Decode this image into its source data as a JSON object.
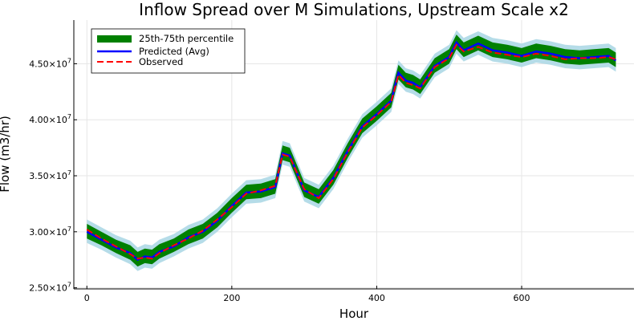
{
  "chart_data": {
    "type": "line",
    "title": "Inflow Spread over M Simulations, Upstream Scale x2",
    "xlabel": "Hour",
    "ylabel": "Flow (m3/hr)",
    "xlim": [
      -18,
      755
    ],
    "ylim": [
      24900000,
      48900000
    ],
    "x_ticks": [
      0,
      200,
      400,
      600
    ],
    "y_ticks": [
      {
        "value": 25000000,
        "mantissa": "2.50",
        "base": "×10",
        "exp": "7"
      },
      {
        "value": 30000000,
        "mantissa": "3.00",
        "base": "×10",
        "exp": "7"
      },
      {
        "value": 35000000,
        "mantissa": "3.50",
        "base": "×10",
        "exp": "7"
      },
      {
        "value": 40000000,
        "mantissa": "4.00",
        "base": "×10",
        "exp": "7"
      },
      {
        "value": 45000000,
        "mantissa": "4.50",
        "base": "×10",
        "exp": "7"
      }
    ],
    "grid": true,
    "legend_position": "top-left",
    "legend": [
      {
        "label": "25th-75th percentile",
        "kind": "band",
        "color": "#008000"
      },
      {
        "label": "Predicted (Avg)",
        "kind": "line",
        "color": "#0000ff"
      },
      {
        "label": "Observed",
        "kind": "dashed",
        "color": "#ff0000"
      }
    ],
    "colors": {
      "band": "#008000",
      "outer_band": "#add8e6",
      "predicted": "#0000ff",
      "observed": "#ff0000"
    },
    "x": [
      0,
      20,
      40,
      60,
      70,
      80,
      90,
      100,
      120,
      140,
      160,
      180,
      200,
      220,
      240,
      260,
      270,
      280,
      300,
      320,
      340,
      360,
      380,
      400,
      420,
      430,
      440,
      450,
      460,
      480,
      500,
      510,
      520,
      540,
      560,
      580,
      600,
      620,
      640,
      660,
      680,
      700,
      720,
      730
    ],
    "series": [
      {
        "name": "Predicted (Avg)",
        "values": [
          30000000,
          29300000,
          28600000,
          28100000,
          27500000,
          27800000,
          27700000,
          28200000,
          28700000,
          29500000,
          30000000,
          31000000,
          32300000,
          33500000,
          33600000,
          34000000,
          37000000,
          36800000,
          33700000,
          33100000,
          34800000,
          37200000,
          39400000,
          40500000,
          41700000,
          44200000,
          43500000,
          43300000,
          42900000,
          44800000,
          45600000,
          46900000,
          46200000,
          46800000,
          46200000,
          46000000,
          45700000,
          46100000,
          45900000,
          45600000,
          45500000,
          45600000,
          45700000,
          45300000
        ]
      },
      {
        "name": "Observed",
        "values": [
          30200000,
          29400000,
          28700000,
          28000000,
          27600000,
          27700000,
          27600000,
          28100000,
          28800000,
          29400000,
          30100000,
          31100000,
          32200000,
          33400000,
          33700000,
          34100000,
          36900000,
          36700000,
          33800000,
          33000000,
          34700000,
          37100000,
          39300000,
          40400000,
          41600000,
          44000000,
          43300000,
          43100000,
          42800000,
          44700000,
          45500000,
          46700000,
          46100000,
          46500000,
          46000000,
          45800000,
          45600000,
          45900000,
          45700000,
          45400000,
          45500000,
          45500000,
          45600000,
          45400000
        ]
      }
    ],
    "band_low": [
      29400000,
      28800000,
      28100000,
      27500000,
      26900000,
      27200000,
      27100000,
      27600000,
      28200000,
      28900000,
      29400000,
      30400000,
      31700000,
      32900000,
      33000000,
      33400000,
      36400000,
      36200000,
      33100000,
      32500000,
      34200000,
      36600000,
      38800000,
      39900000,
      41100000,
      43600000,
      42900000,
      42700000,
      42300000,
      44200000,
      45000000,
      46300000,
      45600000,
      46200000,
      45600000,
      45400000,
      45100000,
      45500000,
      45300000,
      45000000,
      44900000,
      45000000,
      45100000,
      44700000
    ],
    "band_high": [
      30700000,
      30000000,
      29300000,
      28800000,
      28200000,
      28500000,
      28400000,
      28900000,
      29400000,
      30200000,
      30700000,
      31700000,
      33000000,
      34200000,
      34300000,
      34700000,
      37700000,
      37500000,
      34400000,
      33800000,
      35500000,
      37900000,
      40100000,
      41200000,
      42400000,
      44900000,
      44200000,
      44000000,
      43600000,
      45500000,
      46300000,
      47600000,
      46900000,
      47500000,
      46900000,
      46700000,
      46400000,
      46800000,
      46600000,
      46300000,
      46200000,
      46300000,
      46400000,
      46000000
    ],
    "outer_low": [
      29000000,
      28400000,
      27700000,
      27100000,
      26500000,
      26800000,
      26700000,
      27200000,
      27800000,
      28500000,
      29000000,
      30000000,
      31300000,
      32500000,
      32600000,
      33000000,
      36000000,
      35800000,
      32700000,
      32100000,
      33800000,
      36200000,
      38400000,
      39500000,
      40700000,
      43200000,
      42500000,
      42300000,
      41900000,
      43800000,
      44600000,
      45900000,
      45200000,
      45800000,
      45200000,
      45000000,
      44700000,
      45100000,
      44900000,
      44600000,
      44500000,
      44600000,
      44700000,
      44300000
    ],
    "outer_high": [
      31100000,
      30400000,
      29700000,
      29200000,
      28600000,
      28900000,
      28800000,
      29300000,
      29800000,
      30600000,
      31100000,
      32100000,
      33400000,
      34600000,
      34700000,
      35100000,
      38100000,
      37900000,
      34800000,
      34200000,
      35900000,
      38300000,
      40500000,
      41600000,
      42800000,
      45300000,
      44600000,
      44400000,
      44000000,
      45900000,
      46700000,
      48000000,
      47300000,
      47900000,
      47300000,
      47100000,
      46800000,
      47200000,
      47000000,
      46700000,
      46600000,
      46700000,
      46800000,
      46400000
    ]
  }
}
